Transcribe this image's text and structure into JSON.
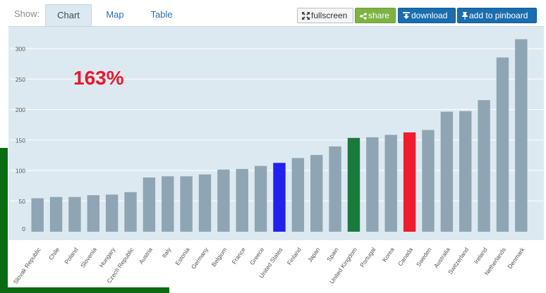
{
  "toolbar": {
    "show_label": "Show:",
    "tabs": [
      {
        "label": "Chart",
        "active": true
      },
      {
        "label": "Map",
        "active": false
      },
      {
        "label": "Table",
        "active": false
      }
    ],
    "buttons": {
      "fullscreen": "fullscreen",
      "share": "share",
      "download": "download",
      "pinboard": "add to pinboard"
    }
  },
  "highlight_value": "163%",
  "colors": {
    "default_bar": "#8fa5b3",
    "united_states": "#2222ee",
    "united_kingdom": "#1a7a3e",
    "canada": "#ee1c2e",
    "chart_background": "#dde9f1"
  },
  "chart_data": {
    "type": "bar",
    "categories": [
      "Slovak Republic",
      "Chile",
      "Poland",
      "Slovenia",
      "Hungary",
      "Czech Republic",
      "Austria",
      "Italy",
      "Estonia",
      "Germany",
      "Belgium",
      "France",
      "Greece",
      "United States",
      "Finland",
      "Japan",
      "Spain",
      "United Kingdom",
      "Portugal",
      "Korea",
      "Canada",
      "Sweden",
      "Australia",
      "Switzerland",
      "Ireland",
      "Netherlands",
      "Denmark"
    ],
    "values": [
      55,
      57,
      57,
      60,
      61,
      65,
      89,
      91,
      91,
      94,
      102,
      103,
      108,
      113,
      121,
      126,
      140,
      154,
      155,
      159,
      163,
      167,
      197,
      198,
      216,
      286,
      316
    ],
    "highlighted": {
      "United States": "#2222ee",
      "United Kingdom": "#1a7a3e",
      "Canada": "#ee1c2e"
    },
    "yticks": [
      0,
      50,
      100,
      150,
      200,
      250,
      300
    ],
    "ylim": [
      0,
      330
    ],
    "grid": true,
    "title": "",
    "xlabel": "",
    "ylabel": ""
  }
}
